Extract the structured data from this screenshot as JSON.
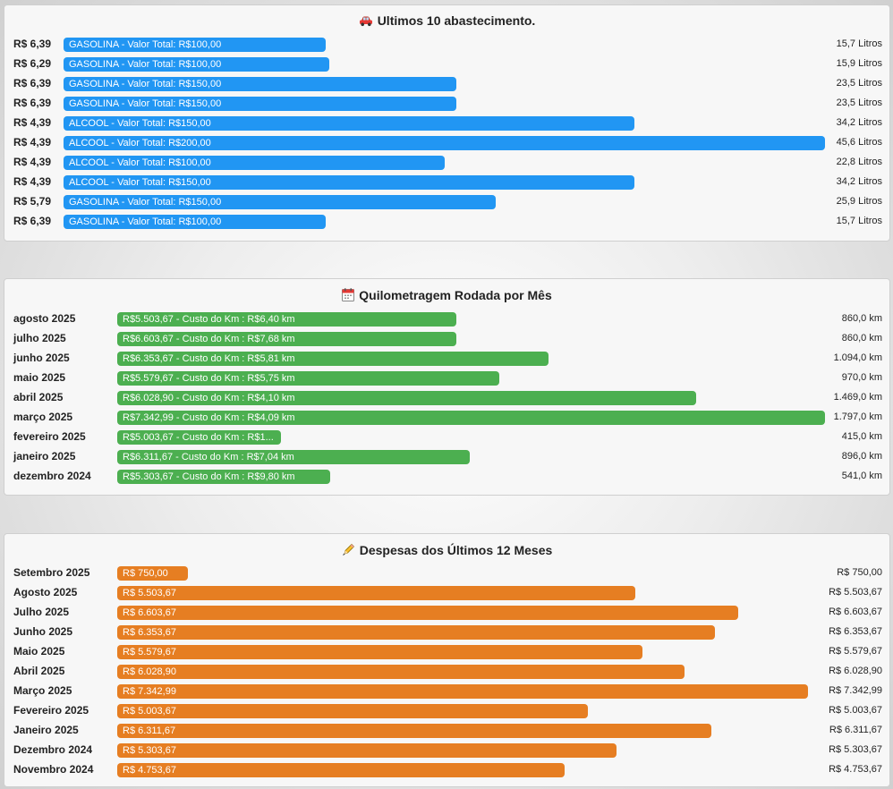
{
  "colors": {
    "fuel_bar": "#2196f3",
    "km_bar": "#4caf50",
    "expense_bar": "#e67e22"
  },
  "fuel": {
    "title": "Ultimos 10 abastecimento.",
    "icon": "car-icon",
    "max_liters": 45.6,
    "rows": [
      {
        "price": "R$ 6,39",
        "bar_text": "GASOLINA - Valor Total: R$100,00",
        "liters_text": "15,7 Litros",
        "liters": 15.7
      },
      {
        "price": "R$ 6,29",
        "bar_text": "GASOLINA - Valor Total: R$100,00",
        "liters_text": "15,9 Litros",
        "liters": 15.9
      },
      {
        "price": "R$ 6,39",
        "bar_text": "GASOLINA - Valor Total: R$150,00",
        "liters_text": "23,5 Litros",
        "liters": 23.5
      },
      {
        "price": "R$ 6,39",
        "bar_text": "GASOLINA - Valor Total: R$150,00",
        "liters_text": "23,5 Litros",
        "liters": 23.5
      },
      {
        "price": "R$ 4,39",
        "bar_text": "ALCOOL - Valor Total: R$150,00",
        "liters_text": "34,2 Litros",
        "liters": 34.2
      },
      {
        "price": "R$ 4,39",
        "bar_text": "ALCOOL - Valor Total: R$200,00",
        "liters_text": "45,6 Litros",
        "liters": 45.6
      },
      {
        "price": "R$ 4,39",
        "bar_text": "ALCOOL - Valor Total: R$100,00",
        "liters_text": "22,8 Litros",
        "liters": 22.8
      },
      {
        "price": "R$ 4,39",
        "bar_text": "ALCOOL - Valor Total: R$150,00",
        "liters_text": "34,2 Litros",
        "liters": 34.2
      },
      {
        "price": "R$ 5,79",
        "bar_text": "GASOLINA - Valor Total: R$150,00",
        "liters_text": "25,9 Litros",
        "liters": 25.9
      },
      {
        "price": "R$ 6,39",
        "bar_text": "GASOLINA - Valor Total: R$100,00",
        "liters_text": "15,7 Litros",
        "liters": 15.7
      }
    ]
  },
  "mileage": {
    "title": "Quilometragem Rodada por Mês",
    "icon": "calendar-icon",
    "max_km": 1797.0,
    "rows": [
      {
        "month": "agosto 2025",
        "bar_text": "R$5.503,67 - Custo do Km : R$6,40 km",
        "km_text": "860,0 km",
        "km": 860.0
      },
      {
        "month": "julho 2025",
        "bar_text": "R$6.603,67 - Custo do Km : R$7,68 km",
        "km_text": "860,0 km",
        "km": 860.0
      },
      {
        "month": "junho 2025",
        "bar_text": "R$6.353,67 - Custo do Km : R$5,81 km",
        "km_text": "1.094,0 km",
        "km": 1094.0
      },
      {
        "month": "maio 2025",
        "bar_text": "R$5.579,67 - Custo do Km : R$5,75 km",
        "km_text": "970,0 km",
        "km": 970.0
      },
      {
        "month": "abril 2025",
        "bar_text": "R$6.028,90 - Custo do Km : R$4,10 km",
        "km_text": "1.469,0 km",
        "km": 1469.0
      },
      {
        "month": "março 2025",
        "bar_text": "R$7.342,99 - Custo do Km : R$4,09 km",
        "km_text": "1.797,0 km",
        "km": 1797.0
      },
      {
        "month": "fevereiro 2025",
        "bar_text": "R$5.003,67 - Custo do Km : R$1...",
        "km_text": "415,0 km",
        "km": 415.0
      },
      {
        "month": "janeiro 2025",
        "bar_text": "R$6.311,67 - Custo do Km : R$7,04 km",
        "km_text": "896,0 km",
        "km": 896.0
      },
      {
        "month": "dezembro 2024",
        "bar_text": "R$5.303,67 - Custo do Km : R$9,80 km",
        "km_text": "541,0 km",
        "km": 541.0
      }
    ]
  },
  "expenses": {
    "title": "Despesas dos Últimos 12 Meses",
    "icon": "pencil-icon",
    "max_value": 7342.99,
    "rows": [
      {
        "month": "Setembro 2025",
        "bar_text": "R$ 750,00",
        "value_text": "R$ 750,00",
        "value": 750.0
      },
      {
        "month": "Agosto 2025",
        "bar_text": "R$ 5.503,67",
        "value_text": "R$ 5.503,67",
        "value": 5503.67
      },
      {
        "month": "Julho 2025",
        "bar_text": "R$ 6.603,67",
        "value_text": "R$ 6.603,67",
        "value": 6603.67
      },
      {
        "month": "Junho 2025",
        "bar_text": "R$ 6.353,67",
        "value_text": "R$ 6.353,67",
        "value": 6353.67
      },
      {
        "month": "Maio 2025",
        "bar_text": "R$ 5.579,67",
        "value_text": "R$ 5.579,67",
        "value": 5579.67
      },
      {
        "month": "Abril 2025",
        "bar_text": "R$ 6.028,90",
        "value_text": "R$ 6.028,90",
        "value": 6028.9
      },
      {
        "month": "Março 2025",
        "bar_text": "R$ 7.342,99",
        "value_text": "R$ 7.342,99",
        "value": 7342.99
      },
      {
        "month": "Fevereiro 2025",
        "bar_text": "R$ 5.003,67",
        "value_text": "R$ 5.003,67",
        "value": 5003.67
      },
      {
        "month": "Janeiro 2025",
        "bar_text": "R$ 6.311,67",
        "value_text": "R$ 6.311,67",
        "value": 6311.67
      },
      {
        "month": "Dezembro 2024",
        "bar_text": "R$ 5.303,67",
        "value_text": "R$ 5.303,67",
        "value": 5303.67
      },
      {
        "month": "Novembro 2024",
        "bar_text": "R$ 4.753,67",
        "value_text": "R$ 4.753,67",
        "value": 4753.67
      }
    ]
  }
}
